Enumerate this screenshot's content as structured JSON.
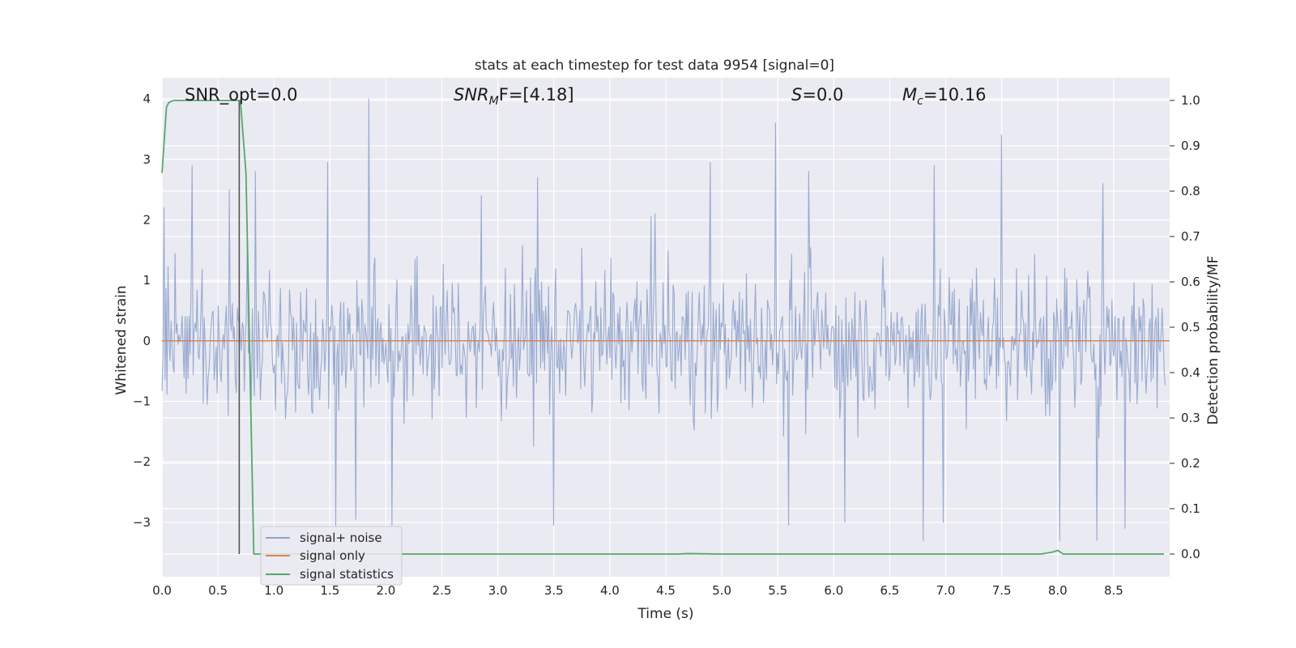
{
  "chart_data": {
    "type": "line",
    "title": "stats at each timestep for test data 9954 [signal=0]",
    "xlabel": "Time (s)",
    "ylabel": "Whitened strain",
    "ylabel_right": "Detection probability/MF",
    "xlim": [
      0.0,
      9.0
    ],
    "ylim": [
      -3.9,
      4.35
    ],
    "ylim_right": [
      -0.05,
      1.05
    ],
    "x_ticks": [
      "0.0",
      "0.5",
      "1.0",
      "1.5",
      "2.0",
      "2.5",
      "3.0",
      "3.5",
      "4.0",
      "4.5",
      "5.0",
      "5.5",
      "6.0",
      "6.5",
      "7.0",
      "7.5",
      "8.0",
      "8.5"
    ],
    "y_ticks": [
      "−3",
      "−2",
      "−1",
      "0",
      "1",
      "2",
      "3",
      "4"
    ],
    "y_ticks_right": [
      "0.0",
      "0.1",
      "0.2",
      "0.3",
      "0.4",
      "0.5",
      "0.6",
      "0.7",
      "0.8",
      "0.9",
      "1.0"
    ],
    "grid": true,
    "legend_position": "lower-left",
    "annotations": {
      "snr_opt": "SNR_opt=0.0",
      "snr_mf_sym": "SNR",
      "snr_mf_sub": "M",
      "snr_mf_rest": "F=[4.18]",
      "s_sym": "S",
      "s_rest": "=0.0",
      "mc_sym": "M",
      "mc_sub": "c",
      "mc_rest": "=10.16"
    },
    "series": [
      {
        "name": "signal+ noise",
        "color": "#8fa3cc",
        "kind": "noise",
        "sample_count": 1000,
        "envelope_peaks": [
          [
            0.02,
            2.2
          ],
          [
            0.27,
            2.9
          ],
          [
            0.6,
            2.5
          ],
          [
            0.83,
            2.8
          ],
          [
            1.48,
            2.95
          ],
          [
            1.85,
            4.0
          ],
          [
            2.85,
            2.4
          ],
          [
            3.35,
            2.7
          ],
          [
            4.4,
            2.1
          ],
          [
            4.9,
            2.95
          ],
          [
            5.48,
            3.6
          ],
          [
            5.78,
            2.8
          ],
          [
            6.9,
            2.9
          ],
          [
            7.5,
            3.4
          ],
          [
            8.4,
            2.6
          ],
          [
            1.55,
            -3.05
          ],
          [
            1.73,
            -2.95
          ],
          [
            2.05,
            -3.05
          ],
          [
            3.5,
            -3.05
          ],
          [
            5.6,
            -3.05
          ],
          [
            6.1,
            -3.0
          ],
          [
            6.8,
            -3.3
          ],
          [
            6.98,
            -3.0
          ],
          [
            8.02,
            -3.3
          ],
          [
            8.35,
            -3.3
          ],
          [
            8.6,
            -3.1
          ]
        ]
      },
      {
        "name": "signal only",
        "color": "#dd8452",
        "x": [
          0.0,
          9.0
        ],
        "y": [
          0.0,
          0.0
        ]
      },
      {
        "name": "signal statistics",
        "color": "#55a868",
        "axis": "right",
        "x": [
          0.0,
          0.04,
          0.06,
          0.1,
          0.2,
          0.3,
          0.4,
          0.5,
          0.6,
          0.65,
          0.7,
          0.75,
          0.82,
          1.0,
          2.0,
          3.0,
          4.0,
          4.6,
          4.7,
          5.0,
          6.0,
          7.0,
          7.85,
          7.95,
          8.0,
          8.05,
          8.5,
          8.95
        ],
        "y": [
          0.84,
          0.985,
          0.995,
          1.0,
          1.0,
          1.0,
          1.0,
          1.0,
          1.0,
          1.0,
          1.0,
          0.84,
          0.0,
          0.0,
          0.0,
          0.0,
          0.0,
          0.0,
          0.001,
          0.0,
          0.0,
          0.0,
          0.0,
          0.004,
          0.008,
          0.0,
          0.0,
          0.0
        ]
      }
    ],
    "vertical_line": {
      "x": 0.69,
      "y_right": [
        0.0,
        1.0
      ],
      "color": "#555555"
    }
  }
}
